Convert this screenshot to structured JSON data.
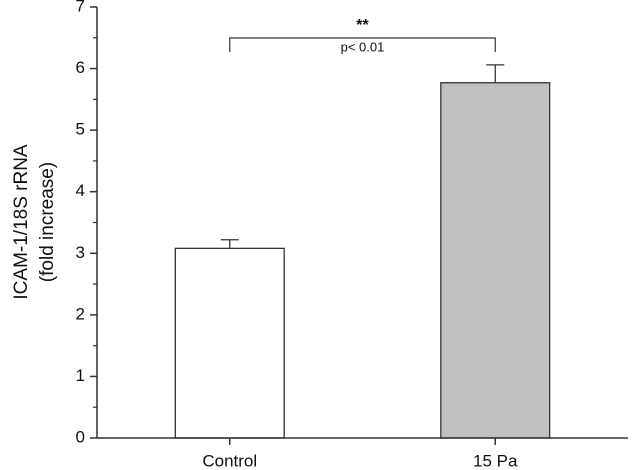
{
  "chart_data": {
    "type": "bar",
    "y_label_lines": [
      "ICAM-1/18S rRNA",
      "(fold increase)"
    ],
    "categories": [
      "Control",
      "15 Pa"
    ],
    "values": [
      3.08,
      5.77
    ],
    "errors": [
      0.14,
      0.29
    ],
    "colors": [
      "#ffffff",
      "#c0c0c0"
    ],
    "edge_color": "#333333",
    "ylim": [
      0,
      7
    ],
    "yticks": [
      0,
      1,
      2,
      3,
      4,
      5,
      6,
      7
    ],
    "annotations": [
      "**",
      "p< 0.01"
    ]
  }
}
